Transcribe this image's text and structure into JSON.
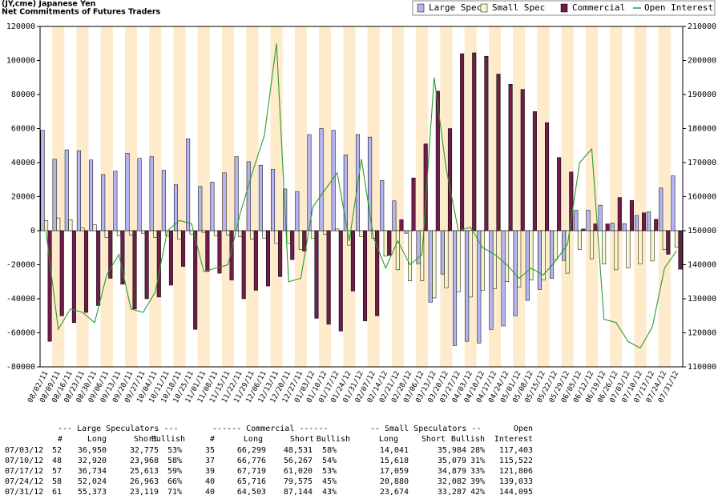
{
  "chart_data": {
    "type": "bar",
    "title": "(JY,cme) Japanese Yen",
    "subtitle": "Net Commitments of Futures Traders",
    "categories": [
      "08/02/11",
      "08/09/11",
      "08/16/11",
      "08/23/11",
      "08/30/11",
      "09/06/11",
      "09/13/11",
      "09/20/11",
      "09/27/11",
      "10/04/11",
      "10/11/11",
      "10/18/11",
      "10/25/11",
      "11/01/11",
      "11/08/11",
      "11/15/11",
      "11/22/11",
      "11/29/11",
      "12/06/11",
      "12/13/11",
      "12/20/11",
      "12/27/11",
      "01/03/12",
      "01/10/12",
      "01/17/12",
      "01/24/12",
      "01/31/12",
      "02/07/12",
      "02/14/12",
      "02/21/12",
      "02/28/12",
      "03/06/12",
      "03/13/12",
      "03/20/12",
      "03/27/12",
      "04/03/12",
      "04/10/12",
      "04/17/12",
      "04/24/12",
      "05/01/12",
      "05/08/12",
      "05/15/12",
      "05/22/12",
      "05/29/12",
      "06/05/12",
      "06/12/12",
      "06/19/12",
      "06/26/12",
      "07/03/12",
      "07/10/12",
      "07/17/12",
      "07/24/12",
      "07/31/12"
    ],
    "series": [
      {
        "name": "Large Spec",
        "color": "#b4b4f0",
        "values": [
          59000,
          42000,
          47500,
          47000,
          41500,
          33000,
          35000,
          45500,
          42500,
          43500,
          35500,
          27000,
          54000,
          26000,
          28500,
          34000,
          43500,
          40500,
          38500,
          36000,
          24500,
          23000,
          56500,
          60000,
          59000,
          44500,
          56500,
          55000,
          29500,
          17500,
          -1500,
          -19500,
          -42000,
          -25500,
          -67500,
          -65000,
          -66000,
          -58000,
          -56000,
          -50000,
          -41000,
          -34500,
          -28000,
          -17500,
          12000,
          12000,
          15000,
          4500,
          4175,
          8952,
          11121,
          25061,
          32254
        ]
      },
      {
        "name": "Small Spec",
        "color": "#f6f6c8",
        "values": [
          6000,
          7500,
          6500,
          1500,
          3500,
          -4000,
          -3000,
          -2500,
          -1500,
          -4000,
          -3000,
          -5000,
          -2000,
          -1000,
          -3000,
          -2500,
          -3500,
          -5000,
          -4500,
          -7500,
          -7500,
          -11000,
          -4500,
          -2000,
          1000,
          -8500,
          -3500,
          -4500,
          -15000,
          -23000,
          -29500,
          -29500,
          -39500,
          -33500,
          -36000,
          -39000,
          -35000,
          -34000,
          -30000,
          -33000,
          -29000,
          -29000,
          -17000,
          -25000,
          -11000,
          -16500,
          -19500,
          -23000,
          -21943,
          -19461,
          -17820,
          -11202,
          -9613
        ]
      },
      {
        "name": "Commercial",
        "color": "#6e1c48",
        "values": [
          -65000,
          -50000,
          -54000,
          -48000,
          -44000,
          -28000,
          -31500,
          -46000,
          -40000,
          -39000,
          -32000,
          -21000,
          -58000,
          -24000,
          -25000,
          -29000,
          -40000,
          -35000,
          -32500,
          -27000,
          -17000,
          -12000,
          -51500,
          -55000,
          -59000,
          -35500,
          -53000,
          -50000,
          -14500,
          6500,
          31000,
          51000,
          82000,
          60000,
          104000,
          104500,
          102500,
          92000,
          86000,
          83000,
          70000,
          63500,
          43000,
          34500,
          1000,
          4000,
          4000,
          19500,
          17768,
          10509,
          6699,
          -13859,
          -22641
        ]
      },
      {
        "name": "Open Interest",
        "color": "#2e9a2e",
        "type": "line",
        "axis": "y2",
        "values": [
          149500,
          121000,
          127000,
          126000,
          123000,
          137000,
          143000,
          127000,
          126000,
          132000,
          150000,
          153000,
          152000,
          138000,
          139000,
          140000,
          155000,
          167000,
          178000,
          205000,
          135000,
          136000,
          157000,
          162000,
          167000,
          147000,
          171000,
          148000,
          139000,
          147000,
          140000,
          143000,
          195000,
          168000,
          150000,
          151000,
          145000,
          143000,
          140000,
          136000,
          139000,
          137000,
          141000,
          146000,
          170000,
          174000,
          124000,
          123000,
          117403,
          115522,
          121806,
          139033,
          144095
        ]
      }
    ],
    "ylim": [
      -80000,
      120000
    ],
    "yticks": [
      -80000,
      -60000,
      -40000,
      -20000,
      0,
      20000,
      40000,
      60000,
      80000,
      100000,
      120000
    ],
    "y2lim": [
      110000,
      210000
    ],
    "y2ticks": [
      110000,
      120000,
      130000,
      140000,
      150000,
      160000,
      170000,
      180000,
      190000,
      200000,
      210000
    ],
    "grid": false,
    "legend": "top-right"
  },
  "table": {
    "group_headers": [
      "--- Large Speculators ---",
      "------ Commercial ------",
      "-- Small Speculators --",
      "Open"
    ],
    "column_headers": [
      "#",
      "Long",
      "Short",
      "Bullish",
      "#",
      "Long",
      "Short",
      "Bullish",
      "Long",
      "Short",
      "Bullish",
      "Interest"
    ],
    "rows": [
      [
        "07/03/12",
        "52",
        "36,950",
        "32,775",
        "53%",
        "35",
        "66,299",
        "48,531",
        "58%",
        "14,041",
        "35,984",
        "28%",
        "117,403"
      ],
      [
        "07/10/12",
        "48",
        "32,920",
        "23,968",
        "58%",
        "37",
        "66,776",
        "56,267",
        "54%",
        "15,618",
        "35,079",
        "31%",
        "115,522"
      ],
      [
        "07/17/12",
        "57",
        "36,734",
        "25,613",
        "59%",
        "39",
        "67,719",
        "61,020",
        "53%",
        "17,059",
        "34,879",
        "33%",
        "121,806"
      ],
      [
        "07/24/12",
        "58",
        "52,024",
        "26,963",
        "66%",
        "40",
        "65,716",
        "79,575",
        "45%",
        "20,880",
        "32,082",
        "39%",
        "139,033"
      ],
      [
        "07/31/12",
        "61",
        "55,373",
        "23,119",
        "71%",
        "40",
        "64,503",
        "87,144",
        "43%",
        "23,674",
        "33,287",
        "42%",
        "144,095"
      ]
    ]
  }
}
